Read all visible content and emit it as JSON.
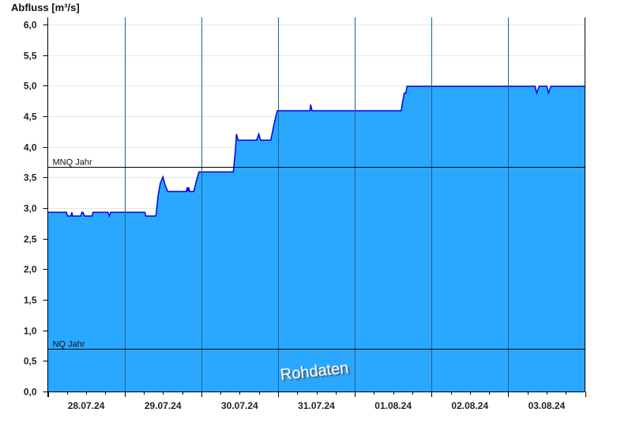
{
  "chart_data": {
    "type": "area",
    "ylabel": "Abfluss [m³/s]",
    "ylim": [
      0,
      6.0
    ],
    "yticks": [
      "0,0",
      "0,5",
      "1,0",
      "1,5",
      "2,0",
      "2,5",
      "3,0",
      "3,5",
      "4,0",
      "4,5",
      "5,0",
      "5,5",
      "6,0"
    ],
    "xlim": [
      "2024-07-28T00:00",
      "2024-08-04T00:00"
    ],
    "xticks": [
      "28.07.24",
      "29.07.24",
      "30.07.24",
      "31.07.24",
      "01.08.24",
      "02.08.24",
      "03.08.24"
    ],
    "grid": true,
    "colors": {
      "fill": "#2aa8ff",
      "line": "#0000ee",
      "grid": "#e6e6e6",
      "daylines": "#1f5f8f"
    },
    "reference_lines": [
      {
        "label": "MNQ Jahr",
        "value": 3.67
      },
      {
        "label": "NQ Jahr",
        "value": 0.7
      }
    ],
    "watermark": "Rohdaten",
    "points": [
      [
        "2024-07-28T00:00",
        2.93
      ],
      [
        "2024-07-28T05:50",
        2.93
      ],
      [
        "2024-07-28T06:10",
        2.87
      ],
      [
        "2024-07-28T07:15",
        2.87
      ],
      [
        "2024-07-28T07:30",
        2.93
      ],
      [
        "2024-07-28T07:45",
        2.87
      ],
      [
        "2024-07-28T10:20",
        2.87
      ],
      [
        "2024-07-28T10:40",
        2.93
      ],
      [
        "2024-07-28T11:00",
        2.93
      ],
      [
        "2024-07-28T11:30",
        2.87
      ],
      [
        "2024-07-28T13:50",
        2.87
      ],
      [
        "2024-07-28T14:10",
        2.93
      ],
      [
        "2024-07-28T18:50",
        2.93
      ],
      [
        "2024-07-28T19:15",
        2.87
      ],
      [
        "2024-07-28T19:40",
        2.93
      ],
      [
        "2024-07-29T06:20",
        2.93
      ],
      [
        "2024-07-29T06:40",
        2.87
      ],
      [
        "2024-07-29T09:50",
        2.87
      ],
      [
        "2024-07-29T10:30",
        3.2
      ],
      [
        "2024-07-29T11:10",
        3.4
      ],
      [
        "2024-07-29T12:00",
        3.51
      ],
      [
        "2024-07-29T12:40",
        3.38
      ],
      [
        "2024-07-29T13:30",
        3.27
      ],
      [
        "2024-07-29T19:20",
        3.27
      ],
      [
        "2024-07-29T19:35",
        3.34
      ],
      [
        "2024-07-29T19:50",
        3.27
      ],
      [
        "2024-07-29T20:05",
        3.34
      ],
      [
        "2024-07-29T20:20",
        3.27
      ],
      [
        "2024-07-29T21:40",
        3.27
      ],
      [
        "2024-07-29T22:30",
        3.45
      ],
      [
        "2024-07-29T23:15",
        3.59
      ],
      [
        "2024-07-30T10:00",
        3.59
      ],
      [
        "2024-07-30T10:40",
        3.95
      ],
      [
        "2024-07-30T11:00",
        4.21
      ],
      [
        "2024-07-30T11:30",
        4.11
      ],
      [
        "2024-07-30T17:20",
        4.11
      ],
      [
        "2024-07-30T18:00",
        4.21
      ],
      [
        "2024-07-30T18:30",
        4.11
      ],
      [
        "2024-07-30T21:45",
        4.11
      ],
      [
        "2024-07-30T22:40",
        4.35
      ],
      [
        "2024-07-30T23:45",
        4.59
      ],
      [
        "2024-07-31T10:00",
        4.59
      ],
      [
        "2024-07-31T10:10",
        4.69
      ],
      [
        "2024-07-31T10:40",
        4.59
      ],
      [
        "2024-08-01T14:30",
        4.59
      ],
      [
        "2024-08-01T15:00",
        4.75
      ],
      [
        "2024-08-01T15:30",
        4.88
      ],
      [
        "2024-08-01T16:00",
        4.88
      ],
      [
        "2024-08-01T16:20",
        4.99
      ],
      [
        "2024-08-03T08:25",
        4.99
      ],
      [
        "2024-08-03T08:55",
        4.88
      ],
      [
        "2024-08-03T09:40",
        4.99
      ],
      [
        "2024-08-03T12:05",
        4.99
      ],
      [
        "2024-08-03T12:35",
        4.88
      ],
      [
        "2024-08-03T13:20",
        4.99
      ],
      [
        "2024-08-04T00:00",
        4.99
      ]
    ]
  }
}
